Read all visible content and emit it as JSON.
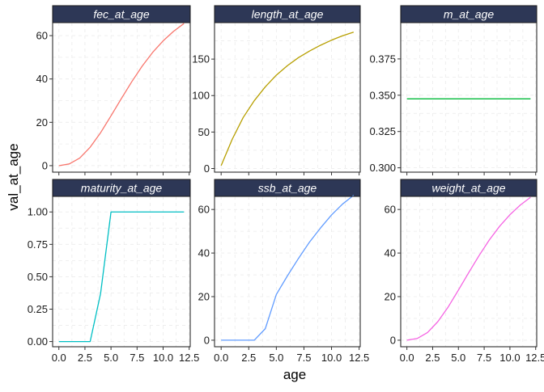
{
  "chart_data": {
    "type": "line",
    "layout": "facet_wrap",
    "xlabel": "age",
    "ylabel": "val_at_age",
    "grid": "minor-dashed",
    "strip_color": "#2d3756",
    "x_ticks": [
      0.0,
      2.5,
      5.0,
      7.5,
      10.0,
      12.5
    ],
    "x_tick_labels": [
      "0.0",
      "2.5",
      "5.0",
      "7.5",
      "10.0",
      "12.5"
    ],
    "xlim": [
      -0.6,
      12.6
    ],
    "panels": [
      {
        "name": "fec_at_age",
        "color": "#f8766d",
        "ylim": [
          -3,
          66
        ],
        "y_ticks": [
          0,
          20,
          40,
          60
        ],
        "y_tick_labels": [
          "0",
          "20",
          "40",
          "60"
        ],
        "x": [
          0,
          1,
          2,
          3,
          4,
          5,
          6,
          7,
          8,
          9,
          10,
          11,
          12
        ],
        "y": [
          0,
          0.8,
          3.5,
          8.5,
          15.2,
          23.0,
          31.0,
          38.8,
          46.0,
          52.3,
          57.6,
          62.0,
          65.6
        ]
      },
      {
        "name": "length_at_age",
        "color": "#b79f00",
        "ylim": [
          -5,
          200
        ],
        "y_ticks": [
          0,
          50,
          100,
          150
        ],
        "y_tick_labels": [
          "0",
          "50",
          "100",
          "150"
        ],
        "x": [
          0,
          1,
          2,
          3,
          4,
          5,
          6,
          7,
          8,
          9,
          10,
          11,
          12
        ],
        "y": [
          4,
          40,
          70,
          93,
          112,
          128,
          141,
          152,
          161,
          169,
          176,
          182,
          187
        ]
      },
      {
        "name": "m_at_age",
        "color": "#00ba38",
        "ylim": [
          0.297,
          0.4
        ],
        "y_ticks": [
          0.3,
          0.325,
          0.35,
          0.375
        ],
        "y_tick_labels": [
          "0.300",
          "0.325",
          "0.350",
          "0.375"
        ],
        "x": [
          0,
          12
        ],
        "y": [
          0.3475,
          0.3475
        ]
      },
      {
        "name": "maturity_at_age",
        "color": "#00bfc4",
        "ylim": [
          -0.04,
          1.12
        ],
        "y_ticks": [
          0,
          0.25,
          0.5,
          0.75,
          1.0
        ],
        "y_tick_labels": [
          "0.00",
          "0.25",
          "0.50",
          "0.75",
          "1.00"
        ],
        "x": [
          0,
          1,
          2,
          3,
          4,
          5,
          6,
          7,
          8,
          9,
          10,
          11,
          12
        ],
        "y": [
          0,
          0,
          0,
          0,
          0.37,
          1,
          1,
          1,
          1,
          1,
          1,
          1,
          1
        ]
      },
      {
        "name": "ssb_at_age",
        "color": "#619cff",
        "ylim": [
          -3,
          66
        ],
        "y_ticks": [
          0,
          20,
          40,
          60
        ],
        "y_tick_labels": [
          "0",
          "20",
          "40",
          "60"
        ],
        "x": [
          0,
          1,
          2,
          3,
          4,
          5,
          6,
          7,
          8,
          9,
          10,
          11,
          12
        ],
        "y": [
          0,
          0,
          0,
          0,
          5.3,
          21.0,
          29.5,
          37.5,
          45.0,
          51.5,
          57.5,
          62.5,
          66.5
        ]
      },
      {
        "name": "weight_at_age",
        "color": "#f564e3",
        "ylim": [
          -3,
          66
        ],
        "y_ticks": [
          0,
          20,
          40,
          60
        ],
        "y_tick_labels": [
          "0",
          "20",
          "40",
          "60"
        ],
        "x": [
          0,
          1,
          2,
          3,
          4,
          5,
          6,
          7,
          8,
          9,
          10,
          11,
          12
        ],
        "y": [
          0,
          0.8,
          3.5,
          8.5,
          15.2,
          23.0,
          31.0,
          38.8,
          46.0,
          52.3,
          57.6,
          62.0,
          65.6
        ]
      }
    ]
  }
}
